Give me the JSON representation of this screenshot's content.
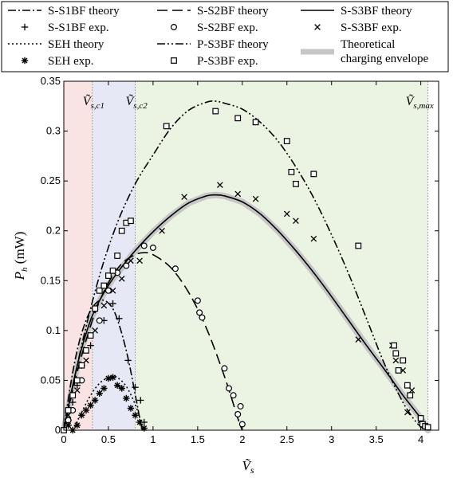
{
  "chart_data": {
    "type": "line",
    "xlabel": "Ṽs",
    "ylabel": "Ph (mW)",
    "xlim": [
      0,
      4.2
    ],
    "ylim": [
      0,
      0.35
    ],
    "xticks": [
      "0",
      "0.5",
      "1",
      "1.5",
      "2",
      "2.5",
      "3",
      "3.5",
      "4"
    ],
    "xtick_values": [
      0,
      0.5,
      1,
      1.5,
      2,
      2.5,
      3,
      3.5,
      4
    ],
    "yticks": [
      "0",
      "0.05",
      "0.1",
      "0.15",
      "0.2",
      "0.25",
      "0.3",
      "0.35"
    ],
    "ytick_values": [
      0,
      0.05,
      0.1,
      0.15,
      0.2,
      0.25,
      0.3,
      0.35
    ],
    "regions": [
      {
        "label": "Ṽs,c1",
        "from": 0,
        "to": 0.32,
        "color": "#f9e3e3"
      },
      {
        "label": "Ṽs,c2",
        "from": 0.32,
        "to": 0.8,
        "color": "#e6e9f5"
      },
      {
        "label": "Ṽs,max",
        "from": 0.8,
        "to": 4.08,
        "color": "#ebf3e3"
      }
    ],
    "region_labels": {
      "c1": "Ṽs,c1",
      "c2": "Ṽs,c2",
      "max": "Ṽs,max"
    },
    "envelope": {
      "name": "Theoretical charging envelope",
      "color": "#c6c6c6",
      "x": [
        0,
        0.1,
        0.2,
        0.32,
        0.45,
        0.55,
        0.65,
        0.8,
        1.0,
        1.2,
        1.4,
        1.6,
        1.7,
        1.8,
        2.0,
        2.2,
        2.4,
        2.6,
        2.8,
        3.0,
        3.2,
        3.4,
        3.6,
        3.8,
        4.0,
        4.08
      ],
      "y": [
        0,
        0.045,
        0.082,
        0.115,
        0.138,
        0.152,
        0.163,
        0.18,
        0.199,
        0.215,
        0.228,
        0.235,
        0.236,
        0.235,
        0.229,
        0.217,
        0.2,
        0.18,
        0.158,
        0.134,
        0.109,
        0.084,
        0.06,
        0.035,
        0.012,
        0.0
      ]
    },
    "theory_series": [
      {
        "name": "S-S1BF theory",
        "dash": "10 3 2 3",
        "x": [
          0,
          0.08,
          0.16,
          0.24,
          0.32,
          0.4,
          0.48,
          0.56,
          0.64,
          0.72,
          0.8,
          0.86,
          0.88
        ],
        "y": [
          0,
          0.048,
          0.084,
          0.108,
          0.123,
          0.13,
          0.129,
          0.12,
          0.1,
          0.072,
          0.036,
          0.008,
          0
        ]
      },
      {
        "name": "S-S2BF theory",
        "dash": "13 6",
        "x": [
          0,
          0.1,
          0.2,
          0.35,
          0.5,
          0.65,
          0.8,
          0.9,
          1.0,
          1.2,
          1.4,
          1.6,
          1.8,
          1.95,
          2.0
        ],
        "y": [
          0,
          0.04,
          0.075,
          0.118,
          0.148,
          0.167,
          0.176,
          0.178,
          0.176,
          0.163,
          0.138,
          0.102,
          0.054,
          0.012,
          0
        ]
      },
      {
        "name": "S-S3BF theory",
        "dash": "",
        "x": [
          0,
          0.1,
          0.2,
          0.32,
          0.45,
          0.6,
          0.8,
          1.0,
          1.2,
          1.4,
          1.6,
          1.7,
          1.8,
          2.0,
          2.2,
          2.4,
          2.6,
          2.8,
          3.0,
          3.2,
          3.4,
          3.6,
          3.8,
          4.0,
          4.08
        ],
        "y": [
          0,
          0.045,
          0.082,
          0.115,
          0.138,
          0.158,
          0.18,
          0.199,
          0.215,
          0.228,
          0.235,
          0.236,
          0.235,
          0.229,
          0.217,
          0.2,
          0.18,
          0.158,
          0.134,
          0.109,
          0.084,
          0.06,
          0.035,
          0.012,
          0
        ]
      },
      {
        "name": "SEH theory",
        "dash": "2 3",
        "x": [
          0.1,
          0.2,
          0.3,
          0.4,
          0.5,
          0.55,
          0.6,
          0.7,
          0.8,
          0.86,
          0.9
        ],
        "y": [
          0,
          0.018,
          0.035,
          0.047,
          0.053,
          0.054,
          0.053,
          0.044,
          0.026,
          0.01,
          0
        ]
      },
      {
        "name": "P-S3BF theory",
        "dash": "10 3 2 3 2 3",
        "x": [
          0,
          0.2,
          0.4,
          0.6,
          0.8,
          1.0,
          1.2,
          1.4,
          1.6,
          1.7,
          1.8,
          2.0,
          2.2,
          2.4,
          2.6,
          2.8,
          3.0,
          3.2,
          3.4,
          3.6,
          3.8,
          3.95,
          4.05
        ],
        "y": [
          0,
          0.085,
          0.155,
          0.208,
          0.247,
          0.276,
          0.303,
          0.321,
          0.329,
          0.33,
          0.328,
          0.322,
          0.309,
          0.29,
          0.264,
          0.233,
          0.196,
          0.155,
          0.11,
          0.065,
          0.028,
          0.008,
          0
        ]
      }
    ],
    "exp_series": [
      {
        "name": "S-S1BF exp.",
        "marker": "plus",
        "x": [
          0.05,
          0.1,
          0.15,
          0.2,
          0.3,
          0.45,
          0.55,
          0.62,
          0.72,
          0.8,
          0.86,
          0.9
        ],
        "y": [
          0.01,
          0.028,
          0.045,
          0.065,
          0.085,
          0.11,
          0.127,
          0.112,
          0.07,
          0.043,
          0.03,
          0.008
        ]
      },
      {
        "name": "S-S2BF exp.",
        "marker": "circle",
        "x": [
          0.05,
          0.1,
          0.2,
          0.4,
          0.5,
          0.6,
          0.7,
          0.9,
          1.0,
          1.25,
          1.5,
          1.52,
          1.55,
          1.8,
          1.85,
          1.9,
          1.95,
          1.98,
          2.0
        ],
        "y": [
          0.01,
          0.02,
          0.05,
          0.11,
          0.14,
          0.158,
          0.165,
          0.185,
          0.183,
          0.162,
          0.13,
          0.118,
          0.113,
          0.062,
          0.042,
          0.035,
          0.016,
          0.024,
          0.006
        ]
      },
      {
        "name": "S-S3BF exp.",
        "marker": "cross",
        "x": [
          0.05,
          0.15,
          0.25,
          0.35,
          0.45,
          0.55,
          0.65,
          0.75,
          0.85,
          1.1,
          1.35,
          1.75,
          1.95,
          2.15,
          2.5,
          2.6,
          2.8,
          3.3,
          3.68,
          3.72,
          3.8,
          3.85,
          3.9,
          4.0,
          4.05
        ],
        "y": [
          0.015,
          0.04,
          0.07,
          0.1,
          0.125,
          0.14,
          0.152,
          0.17,
          0.17,
          0.2,
          0.234,
          0.246,
          0.237,
          0.232,
          0.217,
          0.21,
          0.192,
          0.091,
          0.085,
          0.07,
          0.06,
          0.018,
          0.04,
          0.01,
          0.004
        ]
      },
      {
        "name": "SEH exp.",
        "marker": "asterisk",
        "x": [
          0.05,
          0.1,
          0.15,
          0.2,
          0.25,
          0.3,
          0.35,
          0.4,
          0.45,
          0.5,
          0.55,
          0.6,
          0.65,
          0.7,
          0.75,
          0.8,
          0.85,
          0.9
        ],
        "y": [
          0.005,
          0.0,
          0.005,
          0.015,
          0.02,
          0.025,
          0.03,
          0.037,
          0.042,
          0.052,
          0.053,
          0.045,
          0.042,
          0.032,
          0.022,
          0.015,
          0.008,
          0.002
        ]
      },
      {
        "name": "P-S3BF exp.",
        "marker": "square",
        "x": [
          0,
          0.05,
          0.1,
          0.15,
          0.2,
          0.25,
          0.3,
          0.35,
          0.4,
          0.45,
          0.5,
          0.55,
          0.6,
          0.65,
          0.7,
          0.75,
          1.15,
          1.7,
          1.95,
          2.15,
          2.5,
          2.55,
          2.6,
          2.8,
          3.3,
          3.7,
          3.72,
          3.75,
          3.8,
          3.85,
          3.88,
          4.0,
          4.02,
          4.05,
          4.08
        ],
        "y": [
          0,
          0.02,
          0.035,
          0.05,
          0.065,
          0.08,
          0.095,
          0.122,
          0.14,
          0.145,
          0.155,
          0.16,
          0.175,
          0.2,
          0.208,
          0.21,
          0.305,
          0.32,
          0.313,
          0.309,
          0.29,
          0.259,
          0.247,
          0.257,
          0.185,
          0.085,
          0.077,
          0.06,
          0.07,
          0.045,
          0.035,
          0.012,
          0.006,
          0.004,
          0.003
        ]
      }
    ]
  },
  "legend": [
    {
      "label": "S-S1BF theory",
      "kind": "line",
      "dash": "10 3 2 3"
    },
    {
      "label": "S-S2BF theory",
      "kind": "line",
      "dash": "13 6"
    },
    {
      "label": "S-S3BF theory",
      "kind": "line",
      "dash": ""
    },
    {
      "label": "S-S1BF exp.",
      "kind": "marker",
      "marker": "plus"
    },
    {
      "label": "S-S2BF exp.",
      "kind": "marker",
      "marker": "circle"
    },
    {
      "label": "S-S3BF exp.",
      "kind": "marker",
      "marker": "cross"
    },
    {
      "label": "SEH theory",
      "kind": "line",
      "dash": "2 3"
    },
    {
      "label": "P-S3BF theory",
      "kind": "line",
      "dash": "10 3 2 3 2 3"
    },
    {
      "label": "Theoretical",
      "label2": "charging envelope",
      "kind": "envelope"
    },
    {
      "label": "SEH exp.",
      "kind": "marker",
      "marker": "asterisk"
    },
    {
      "label": "P-S3BF exp.",
      "kind": "marker",
      "marker": "square"
    }
  ]
}
